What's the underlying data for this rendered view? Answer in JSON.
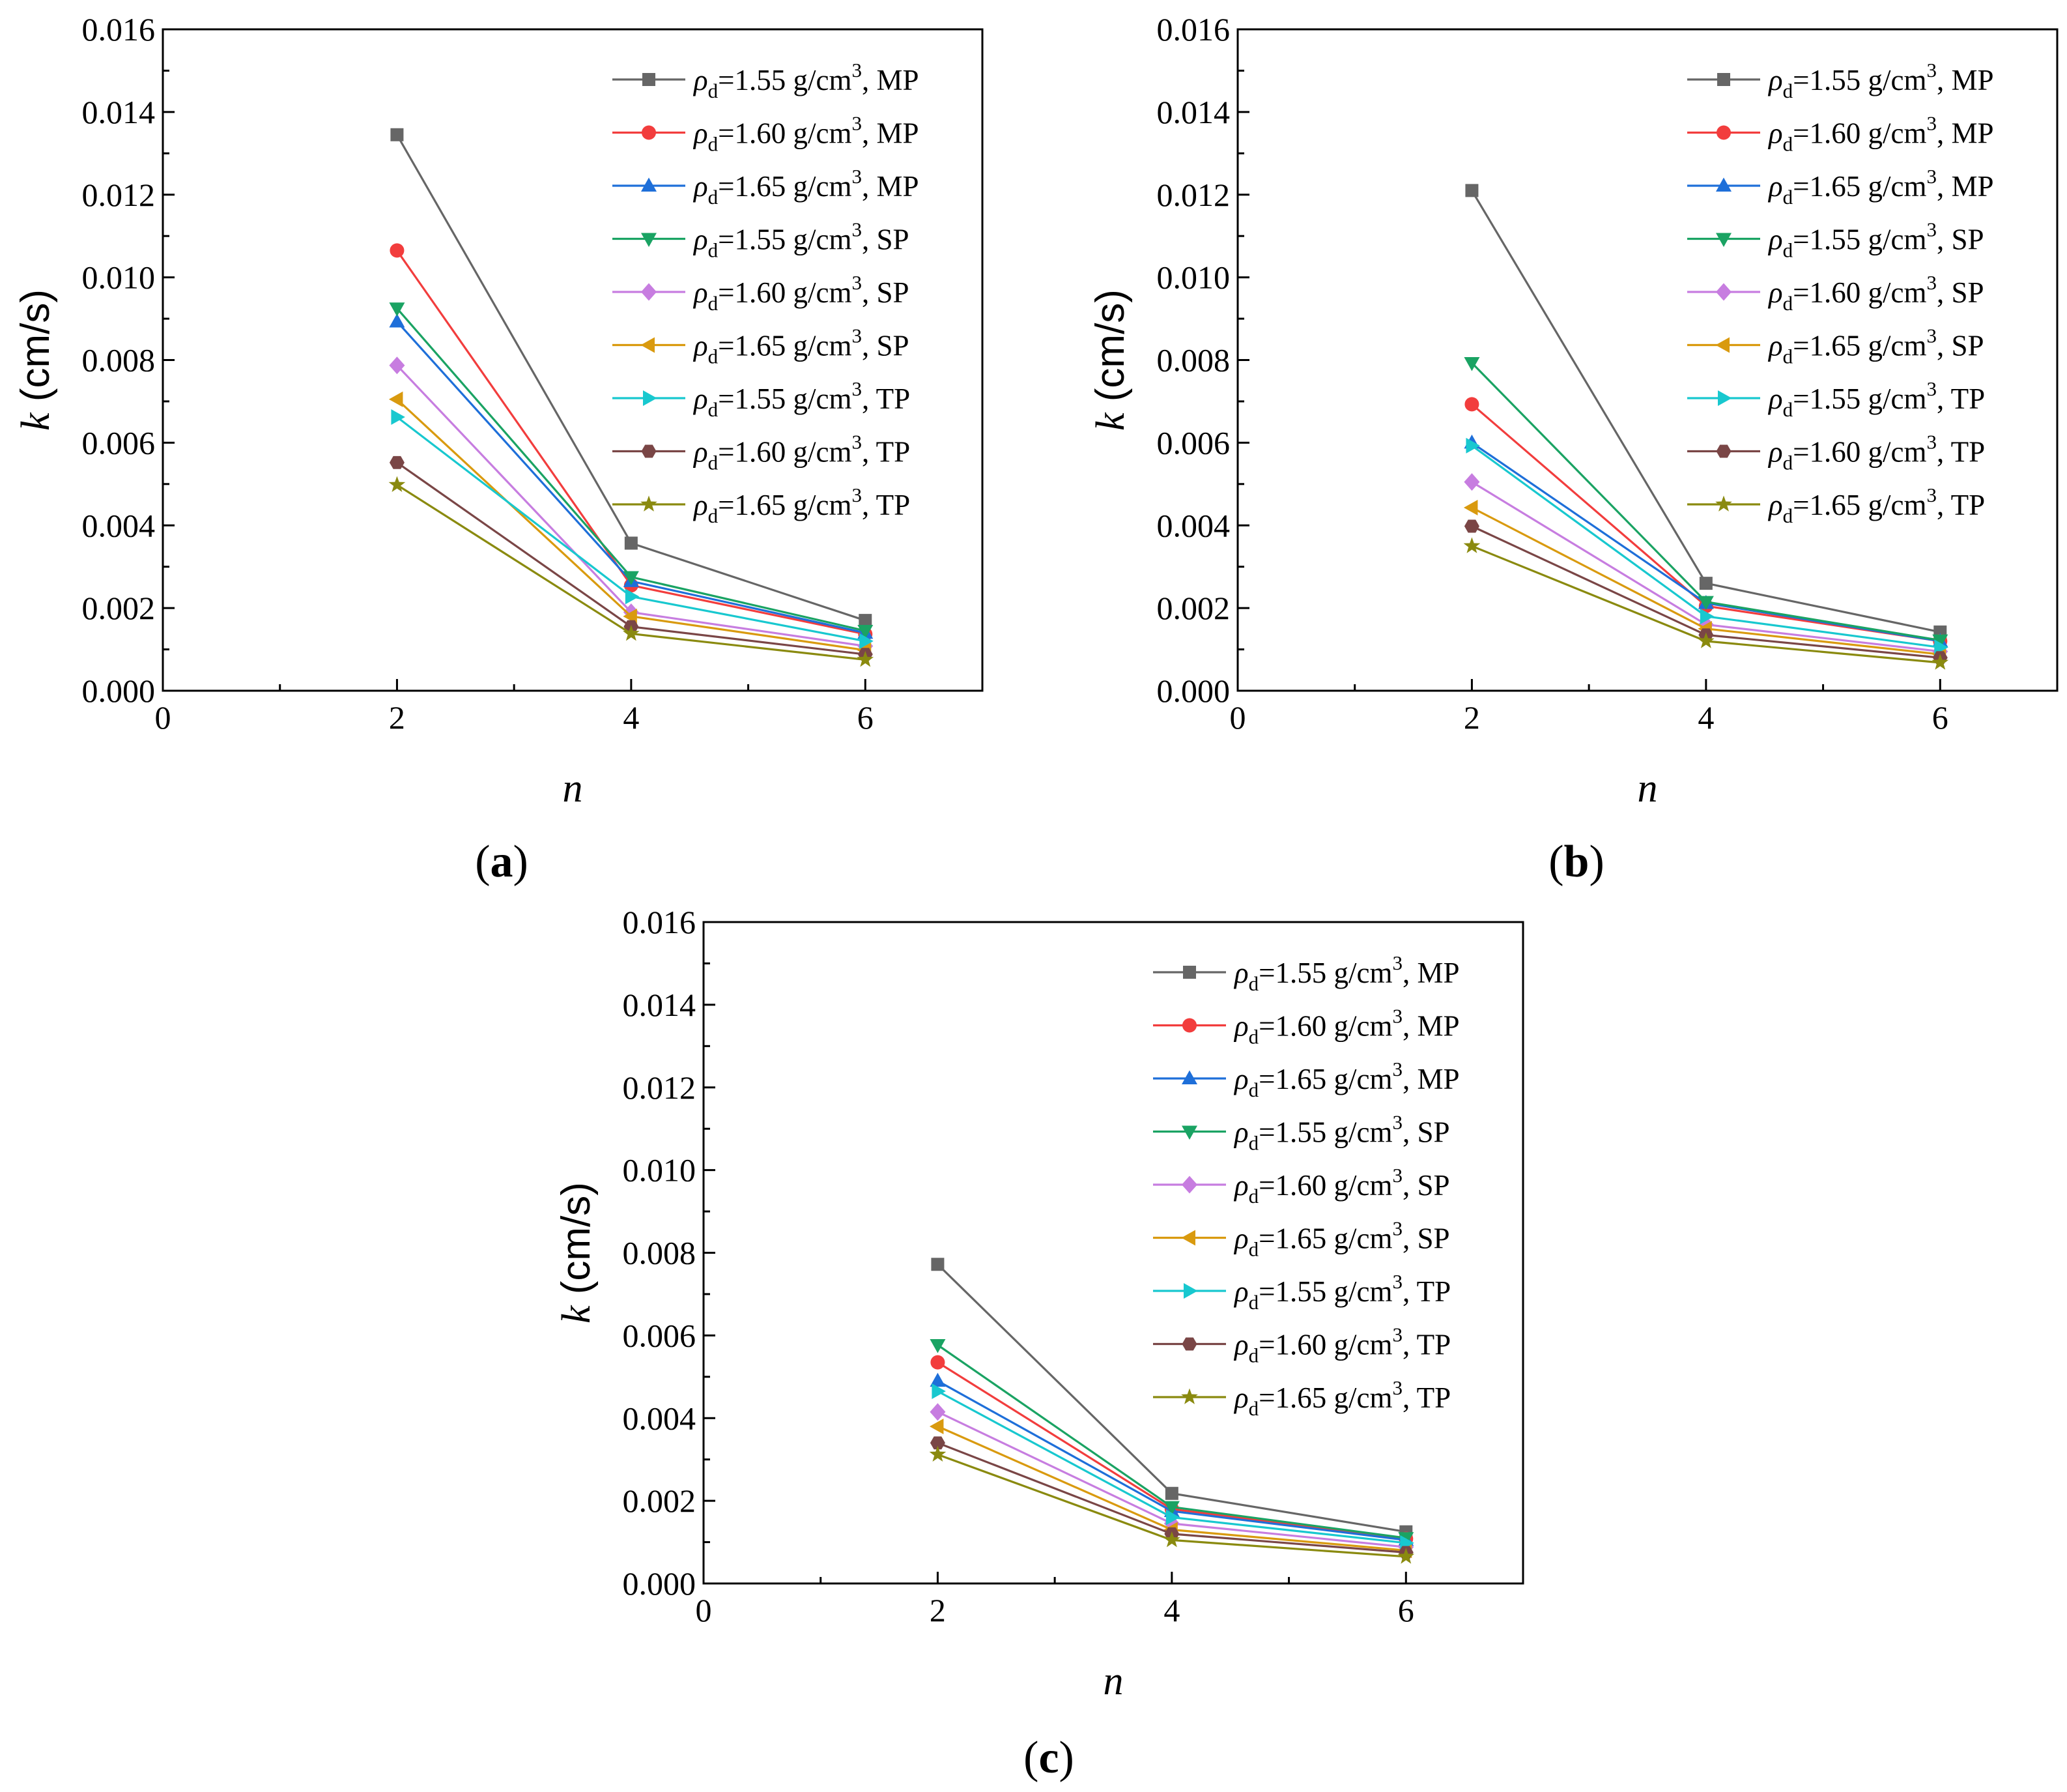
{
  "figure": {
    "x_ticks": [
      "0",
      "2",
      "4",
      "6"
    ],
    "y_ticks": [
      "0.000",
      "0.002",
      "0.004",
      "0.006",
      "0.008",
      "0.010",
      "0.012",
      "0.014",
      "0.016"
    ],
    "xlabel": "n",
    "ylabel_var": "k",
    "ylabel_unit": " (cm/s)"
  },
  "legend": [
    {
      "rho": "1.55",
      "unit": " g/cm",
      "sup": "3",
      "type": ", MP",
      "color": "#666666",
      "marker": "square"
    },
    {
      "rho": "1.60",
      "unit": " g/cm",
      "sup": "3",
      "type": ", MP",
      "color": "#f23d3d",
      "marker": "circle"
    },
    {
      "rho": "1.65",
      "unit": " g/cm",
      "sup": "3",
      "type": ", MP",
      "color": "#1e6fd9",
      "marker": "triangle-up"
    },
    {
      "rho": "1.55",
      "unit": " g/cm",
      "sup": "3",
      "type": ", SP",
      "color": "#1aa363",
      "marker": "triangle-down"
    },
    {
      "rho": "1.60",
      "unit": " g/cm",
      "sup": "3",
      "type": ", SP",
      "color": "#c77de0",
      "marker": "diamond"
    },
    {
      "rho": "1.65",
      "unit": " g/cm",
      "sup": "3",
      "type": ", SP",
      "color": "#d99a0f",
      "marker": "triangle-left"
    },
    {
      "rho": "1.55",
      "unit": " g/cm",
      "sup": "3",
      "type": ", TP",
      "color": "#18c8cf",
      "marker": "triangle-right"
    },
    {
      "rho": "1.60",
      "unit": " g/cm",
      "sup": "3",
      "type": ", TP",
      "color": "#7a4646",
      "marker": "hexagon"
    },
    {
      "rho": "1.65",
      "unit": " g/cm",
      "sup": "3",
      "type": ", TP",
      "color": "#8a8a0f",
      "marker": "star"
    }
  ],
  "legend_symbol": "ρ",
  "legend_subscript": "d",
  "legend_eq": "=",
  "chart_data": [
    {
      "type": "line",
      "panel_label": "a",
      "xlabel": "n",
      "ylabel": "k (cm/s)",
      "xlim": [
        0,
        7
      ],
      "ylim": [
        0,
        0.016
      ],
      "x": [
        2,
        4,
        6
      ],
      "series": [
        {
          "name": "ρd=1.55 g/cm3, MP",
          "values": [
            0.01345,
            0.00357,
            0.0017
          ]
        },
        {
          "name": "ρd=1.60 g/cm3, MP",
          "values": [
            0.01065,
            0.00255,
            0.00137
          ]
        },
        {
          "name": "ρd=1.65 g/cm3, MP",
          "values": [
            0.00893,
            0.00265,
            0.0014
          ]
        },
        {
          "name": "ρd=1.55 g/cm3, SP",
          "values": [
            0.00925,
            0.00275,
            0.00145
          ]
        },
        {
          "name": "ρd=1.60 g/cm3, SP",
          "values": [
            0.00787,
            0.0019,
            0.00108
          ]
        },
        {
          "name": "ρd=1.65 g/cm3, SP",
          "values": [
            0.00705,
            0.0018,
            0.00098
          ]
        },
        {
          "name": "ρd=1.55 g/cm3, TP",
          "values": [
            0.00662,
            0.00228,
            0.0012
          ]
        },
        {
          "name": "ρd=1.60 g/cm3, TP",
          "values": [
            0.00552,
            0.00155,
            0.00088
          ]
        },
        {
          "name": "ρd=1.65 g/cm3, TP",
          "values": [
            0.00498,
            0.00138,
            0.00075
          ]
        }
      ]
    },
    {
      "type": "line",
      "panel_label": "b",
      "xlabel": "n",
      "ylabel": "k (cm/s)",
      "xlim": [
        0,
        7
      ],
      "ylim": [
        0,
        0.016
      ],
      "x": [
        2,
        4,
        6
      ],
      "series": [
        {
          "name": "ρd=1.55 g/cm3, MP",
          "values": [
            0.0121,
            0.0026,
            0.00142
          ]
        },
        {
          "name": "ρd=1.60 g/cm3, MP",
          "values": [
            0.00693,
            0.00205,
            0.0012
          ]
        },
        {
          "name": "ρd=1.65 g/cm3, MP",
          "values": [
            0.006,
            0.00212,
            0.0012
          ]
        },
        {
          "name": "ρd=1.55 g/cm3, SP",
          "values": [
            0.00793,
            0.00215,
            0.00122
          ]
        },
        {
          "name": "ρd=1.60 g/cm3, SP",
          "values": [
            0.00505,
            0.0016,
            0.00095
          ]
        },
        {
          "name": "ρd=1.65 g/cm3, SP",
          "values": [
            0.00443,
            0.0015,
            0.00088
          ]
        },
        {
          "name": "ρd=1.55 g/cm3, TP",
          "values": [
            0.00593,
            0.0018,
            0.00105
          ]
        },
        {
          "name": "ρd=1.60 g/cm3, TP",
          "values": [
            0.00398,
            0.00135,
            0.0008
          ]
        },
        {
          "name": "ρd=1.65 g/cm3, TP",
          "values": [
            0.0035,
            0.0012,
            0.00068
          ]
        }
      ]
    },
    {
      "type": "line",
      "panel_label": "c",
      "xlabel": "n",
      "ylabel": "k (cm/s)",
      "xlim": [
        0,
        7
      ],
      "ylim": [
        0,
        0.016
      ],
      "x": [
        2,
        4,
        6
      ],
      "series": [
        {
          "name": "ρd=1.55 g/cm3, MP",
          "values": [
            0.00772,
            0.00218,
            0.00125
          ]
        },
        {
          "name": "ρd=1.60 g/cm3, MP",
          "values": [
            0.00535,
            0.0018,
            0.00108
          ]
        },
        {
          "name": "ρd=1.65 g/cm3, MP",
          "values": [
            0.0049,
            0.00175,
            0.00105
          ]
        },
        {
          "name": "ρd=1.55 g/cm3, SP",
          "values": [
            0.00577,
            0.00185,
            0.0011
          ]
        },
        {
          "name": "ρd=1.60 g/cm3, SP",
          "values": [
            0.00415,
            0.00145,
            0.00088
          ]
        },
        {
          "name": "ρd=1.65 g/cm3, SP",
          "values": [
            0.0038,
            0.0013,
            0.0008
          ]
        },
        {
          "name": "ρd=1.55 g/cm3, TP",
          "values": [
            0.00465,
            0.0016,
            0.00098
          ]
        },
        {
          "name": "ρd=1.60 g/cm3, TP",
          "values": [
            0.0034,
            0.0012,
            0.00075
          ]
        },
        {
          "name": "ρd=1.65 g/cm3, TP",
          "values": [
            0.00312,
            0.00105,
            0.00065
          ]
        }
      ]
    }
  ]
}
